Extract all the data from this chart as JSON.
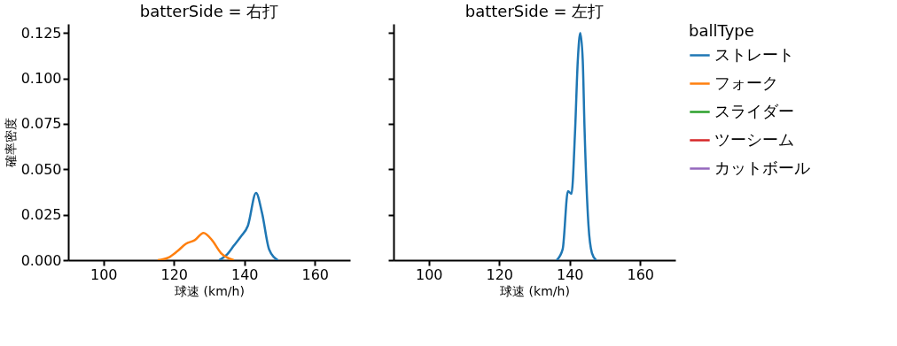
{
  "chart_data": [
    {
      "type": "line",
      "title": "batterSide = 右打",
      "xlabel": "球速 (km/h)",
      "ylabel": "確率密度",
      "xlim": [
        90,
        170
      ],
      "xticks": [
        100,
        120,
        140,
        160
      ],
      "ylim": [
        0,
        0.13
      ],
      "yticks": [
        {
          "value": 0,
          "label": "0.000"
        },
        {
          "value": 0.025,
          "label": "0.025"
        },
        {
          "value": 0.05,
          "label": "0.050"
        },
        {
          "value": 0.075,
          "label": "0.075"
        },
        {
          "value": 0.1,
          "label": "0.100"
        },
        {
          "value": 0.125,
          "label": "0.125"
        }
      ],
      "grid": false,
      "legend": "right",
      "legend_title": "ballType",
      "series": [
        {
          "name": "ストレート",
          "color": "#1f77b4",
          "x": [
            132.8,
            135,
            137,
            139,
            141,
            143.3,
            145,
            147,
            149.5
          ],
          "values": [
            0,
            0.003,
            0.008,
            0.013,
            0.019,
            0.037,
            0.026,
            0.006,
            0
          ]
        },
        {
          "name": "フォーク",
          "color": "#ff7f0e",
          "x": [
            115.4,
            118.4,
            121,
            123.4,
            125.9,
            128.4,
            130.8,
            133.3,
            137
          ],
          "values": [
            0,
            0.0014,
            0.005,
            0.009,
            0.011,
            0.015,
            0.011,
            0.004,
            0
          ]
        },
        {
          "name": "スライダー",
          "color": "#2ca02c"
        },
        {
          "name": "ツーシーム",
          "color": "#d62728"
        },
        {
          "name": "カットボール",
          "color": "#9467bd"
        }
      ]
    },
    {
      "type": "line",
      "title": "batterSide = 左打",
      "xlabel": "球速 (km/h)",
      "xlim": [
        90,
        170
      ],
      "xticks": [
        100,
        120,
        140,
        160
      ],
      "ylim": [
        0,
        0.13
      ],
      "yticks": [
        {
          "value": 0,
          "label": null
        },
        {
          "value": 0.025,
          "label": null
        },
        {
          "value": 0.05,
          "label": null
        },
        {
          "value": 0.075,
          "label": null
        },
        {
          "value": 0.1,
          "label": null
        },
        {
          "value": 0.125,
          "label": null
        }
      ],
      "grid": false,
      "tick_labels": "x",
      "series": [
        {
          "name": "ストレート",
          "color": "#1f77b4",
          "x": [
            136.3,
            138,
            139.5,
            140.5,
            141.5,
            142.3,
            143,
            143.7,
            144.2,
            145.3,
            146.3,
            147.5
          ],
          "values": [
            0,
            0.006,
            0.038,
            0.0365,
            0.07,
            0.11,
            0.125,
            0.11,
            0.073,
            0.02,
            0.004,
            0
          ]
        }
      ]
    }
  ]
}
